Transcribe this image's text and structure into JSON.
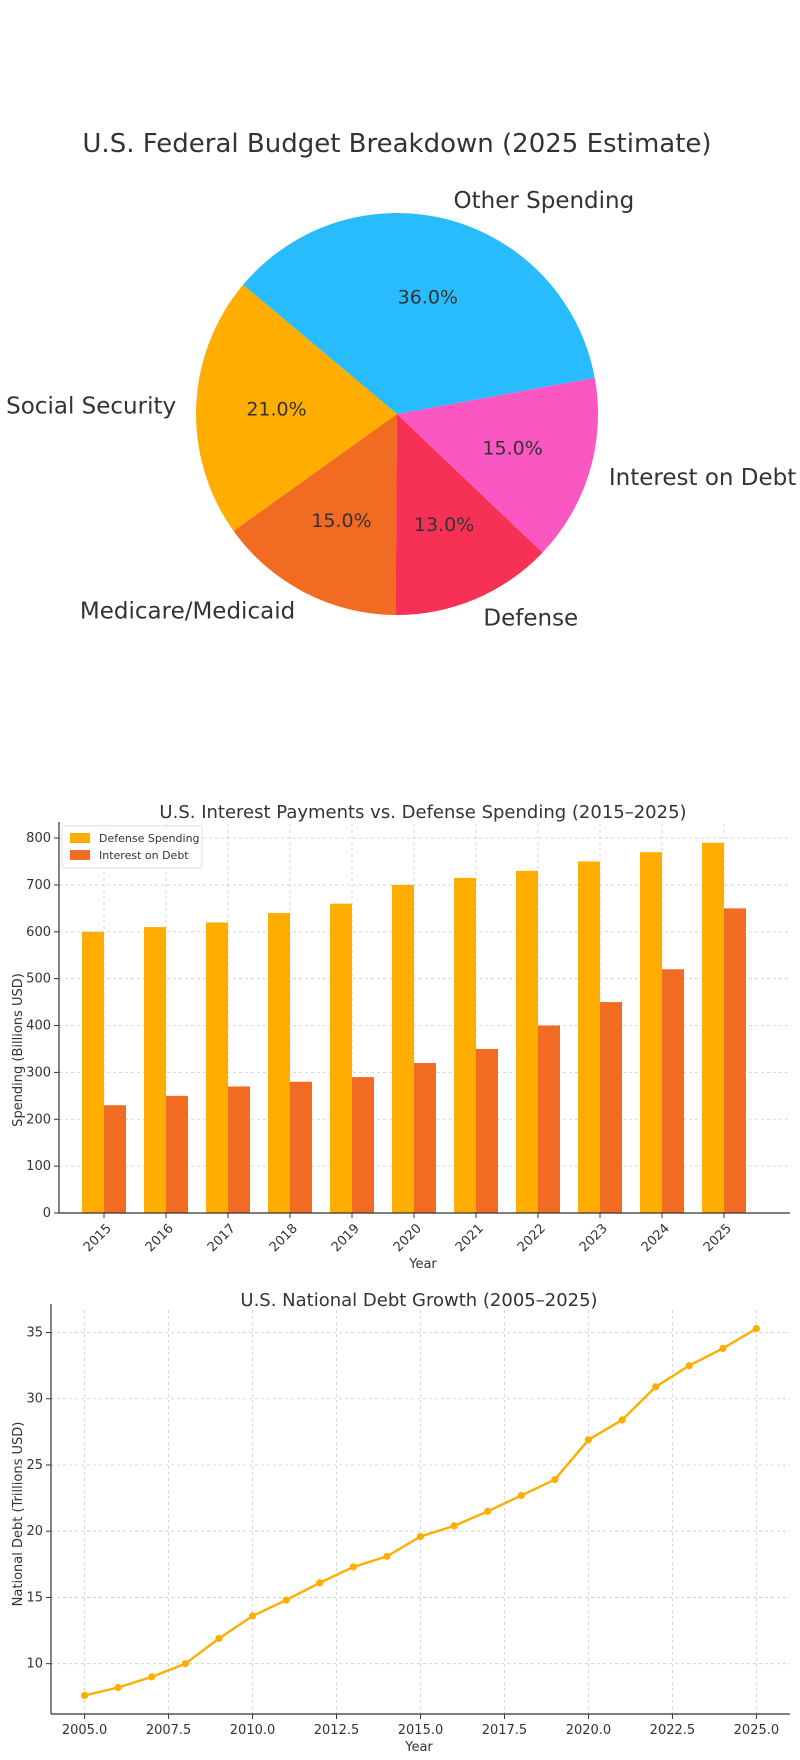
{
  "colors": {
    "orange": "#ffae00",
    "dark_orange": "#f26b22",
    "red": "#f73155",
    "pink": "#fa57c2",
    "blue": "#29bcfd",
    "text": "#333333"
  },
  "chart_data": [
    {
      "type": "pie",
      "title": "U.S. Federal Budget Breakdown (2025 Estimate)",
      "slices": [
        {
          "label": "Social Security",
          "value": 21.0,
          "pct_label": "21.0%",
          "color": "#ffae00"
        },
        {
          "label": "Medicare/Medicaid",
          "value": 15.0,
          "pct_label": "15.0%",
          "color": "#f26b22"
        },
        {
          "label": "Defense",
          "value": 13.0,
          "pct_label": "13.0%",
          "color": "#f73155"
        },
        {
          "label": "Interest on Debt",
          "value": 15.0,
          "pct_label": "15.0%",
          "color": "#fa57c2"
        },
        {
          "label": "Other Spending",
          "value": 36.0,
          "pct_label": "36.0%",
          "color": "#29bcfd"
        }
      ],
      "start_angle_deg": 140,
      "direction": "counterclockwise"
    },
    {
      "type": "bar",
      "title": "U.S. Interest Payments vs. Defense Spending (2015–2025)",
      "xlabel": "Year",
      "ylabel": "Spending (Billions USD)",
      "categories": [
        "2015",
        "2016",
        "2017",
        "2018",
        "2019",
        "2020",
        "2021",
        "2022",
        "2023",
        "2024",
        "2025"
      ],
      "series": [
        {
          "name": "Defense Spending",
          "color": "#ffae00",
          "values": [
            600,
            610,
            620,
            640,
            660,
            700,
            715,
            730,
            750,
            770,
            790
          ]
        },
        {
          "name": "Interest on Debt",
          "color": "#f26b22",
          "values": [
            230,
            250,
            270,
            280,
            290,
            320,
            350,
            400,
            450,
            520,
            650
          ]
        }
      ],
      "ylim": [
        0,
        830
      ],
      "yticks": [
        0,
        100,
        200,
        300,
        400,
        500,
        600,
        700,
        800
      ],
      "grid": true,
      "legend": "top-left"
    },
    {
      "type": "line",
      "title": "U.S. National Debt Growth (2005–2025)",
      "xlabel": "Year",
      "ylabel": "National Debt (Trillions USD)",
      "x": [
        2005,
        2006,
        2007,
        2008,
        2009,
        2010,
        2011,
        2012,
        2013,
        2014,
        2015,
        2016,
        2017,
        2018,
        2019,
        2020,
        2021,
        2022,
        2023,
        2024,
        2025
      ],
      "series": [
        {
          "name": "National Debt",
          "color": "#ffae00",
          "values": [
            7.6,
            8.2,
            9.0,
            10.0,
            11.9,
            13.6,
            14.8,
            16.1,
            17.3,
            18.1,
            19.6,
            20.4,
            21.5,
            22.7,
            23.9,
            26.9,
            28.4,
            30.9,
            32.5,
            33.8,
            35.3
          ]
        }
      ],
      "xlim": [
        2004,
        2026
      ],
      "ylim": [
        6.2,
        36.7
      ],
      "xticks": [
        2005.0,
        2007.5,
        2010.0,
        2012.5,
        2015.0,
        2017.5,
        2020.0,
        2022.5,
        2025.0
      ],
      "xtick_labels": [
        "2005.0",
        "2007.5",
        "2010.0",
        "2012.5",
        "2015.0",
        "2017.5",
        "2020.0",
        "2022.5",
        "2025.0"
      ],
      "yticks": [
        10,
        15,
        20,
        25,
        30,
        35
      ],
      "grid": true
    }
  ]
}
